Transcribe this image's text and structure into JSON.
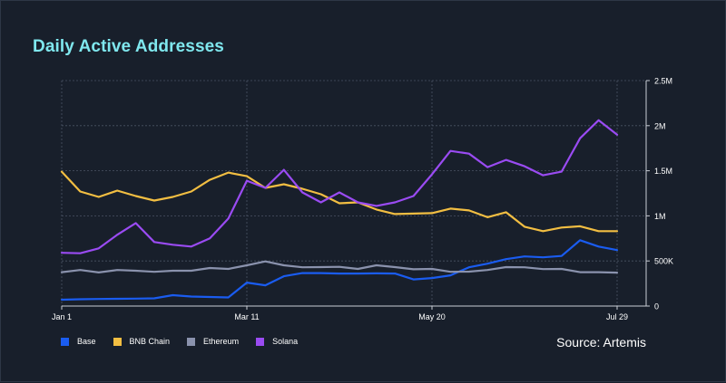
{
  "chart_data": {
    "type": "line",
    "title": "Daily Active Addresses",
    "source": "Source: Artemis",
    "x_ticks": [
      "Jan 1",
      "Mar 11",
      "May 20",
      "Jul 29"
    ],
    "y_ticks": [
      "0",
      "500K",
      "1M",
      "1.5M",
      "2M",
      "2.5M"
    ],
    "ylim": [
      0,
      2500000
    ],
    "y_axis_position": "right",
    "grid": true,
    "legend_position": "bottom-left",
    "x": [
      "2024-01-01",
      "2024-01-08",
      "2024-01-15",
      "2024-01-22",
      "2024-01-29",
      "2024-02-05",
      "2024-02-12",
      "2024-02-19",
      "2024-02-26",
      "2024-03-04",
      "2024-03-11",
      "2024-03-18",
      "2024-03-25",
      "2024-04-01",
      "2024-04-08",
      "2024-04-15",
      "2024-04-22",
      "2024-04-29",
      "2024-05-06",
      "2024-05-13",
      "2024-05-20",
      "2024-05-27",
      "2024-06-03",
      "2024-06-10",
      "2024-06-17",
      "2024-06-24",
      "2024-07-01",
      "2024-07-08",
      "2024-07-15",
      "2024-07-22",
      "2024-07-29"
    ],
    "series": [
      {
        "name": "Base",
        "color": "#1a5cf0",
        "values": [
          70000,
          75000,
          78000,
          80000,
          82000,
          85000,
          120000,
          105000,
          100000,
          95000,
          260000,
          230000,
          330000,
          365000,
          365000,
          360000,
          360000,
          362000,
          360000,
          295000,
          310000,
          340000,
          430000,
          470000,
          520000,
          550000,
          540000,
          555000,
          730000,
          660000,
          620000
        ]
      },
      {
        "name": "BNB Chain",
        "color": "#f2be42",
        "values": [
          1490000,
          1270000,
          1210000,
          1280000,
          1220000,
          1170000,
          1210000,
          1270000,
          1400000,
          1480000,
          1440000,
          1310000,
          1350000,
          1300000,
          1240000,
          1140000,
          1150000,
          1070000,
          1020000,
          1025000,
          1030000,
          1080000,
          1060000,
          985000,
          1040000,
          880000,
          830000,
          870000,
          885000,
          830000,
          830000
        ]
      },
      {
        "name": "Ethereum",
        "color": "#8a92ad",
        "values": [
          375000,
          400000,
          372000,
          400000,
          392000,
          380000,
          392000,
          392000,
          422000,
          412000,
          452000,
          495000,
          452000,
          430000,
          432000,
          435000,
          412000,
          452000,
          432000,
          408000,
          412000,
          380000,
          382000,
          400000,
          432000,
          430000,
          410000,
          412000,
          375000,
          375000,
          370000
        ]
      },
      {
        "name": "Solana",
        "color": "#9a4bf2",
        "values": [
          590000,
          585000,
          640000,
          790000,
          920000,
          710000,
          680000,
          660000,
          750000,
          970000,
          1390000,
          1310000,
          1510000,
          1260000,
          1150000,
          1260000,
          1150000,
          1110000,
          1150000,
          1220000,
          1460000,
          1720000,
          1690000,
          1540000,
          1620000,
          1550000,
          1450000,
          1490000,
          1860000,
          2060000,
          1900000
        ]
      }
    ]
  }
}
